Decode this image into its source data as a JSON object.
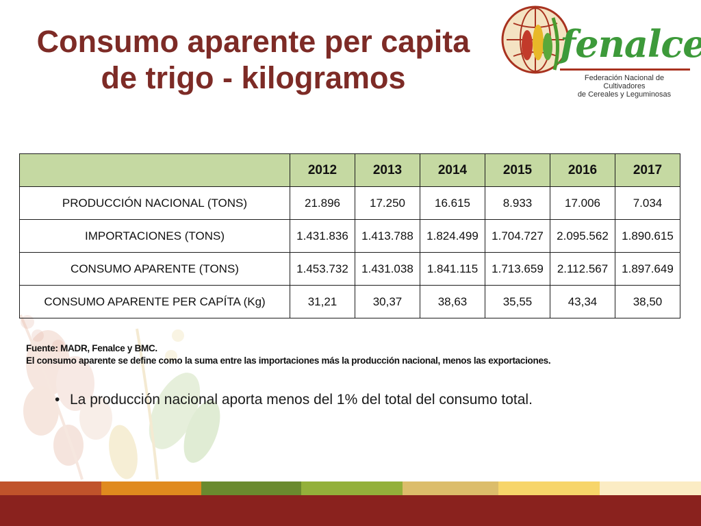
{
  "slide": {
    "title_line1": "Consumo aparente per capita",
    "title_line2": "de trigo - kilogramos"
  },
  "logo": {
    "word": "fenalce",
    "sub_line1": "Federación Nacional de Cultivadores",
    "sub_line2": "de Cereales y Leguminosas"
  },
  "table": {
    "header_corner": "",
    "years": [
      "2012",
      "2013",
      "2014",
      "2015",
      "2016",
      "2017"
    ],
    "rows": [
      {
        "label": "PRODUCCIÓN NACIONAL (TONS)",
        "values": [
          "21.896",
          "17.250",
          "16.615",
          "8.933",
          "17.006",
          "7.034"
        ]
      },
      {
        "label": "IMPORTACIONES (TONS)",
        "values": [
          "1.431.836",
          "1.413.788",
          "1.824.499",
          "1.704.727",
          "2.095.562",
          "1.890.615"
        ]
      },
      {
        "label": "CONSUMO APARENTE (TONS)",
        "values": [
          "1.453.732",
          "1.431.038",
          "1.841.115",
          "1.713.659",
          "2.112.567",
          "1.897.649"
        ]
      },
      {
        "label": "CONSUMO APARENTE PER CAPÍTA (Kg)",
        "values": [
          "31,21",
          "30,37",
          "38,63",
          "35,55",
          "43,34",
          "38,50"
        ]
      }
    ]
  },
  "notes": {
    "source": "Fuente: MADR, Fenalce y BMC.",
    "definition": "El consumo aparente se define como la suma entre las importaciones más la producción nacional, menos las exportaciones."
  },
  "bullets": [
    "La producción nacional aporta menos del 1% del total del consumo total."
  ],
  "colors": {
    "title": "#7d2b26",
    "table_header": "#c5d9a2",
    "footer_bar": "#8a221e",
    "stripes": [
      "#c0532b",
      "#e08a1e",
      "#6a8a2e",
      "#93b03a",
      "#dcbd6b",
      "#f7d56a",
      "#fbecc4"
    ]
  }
}
